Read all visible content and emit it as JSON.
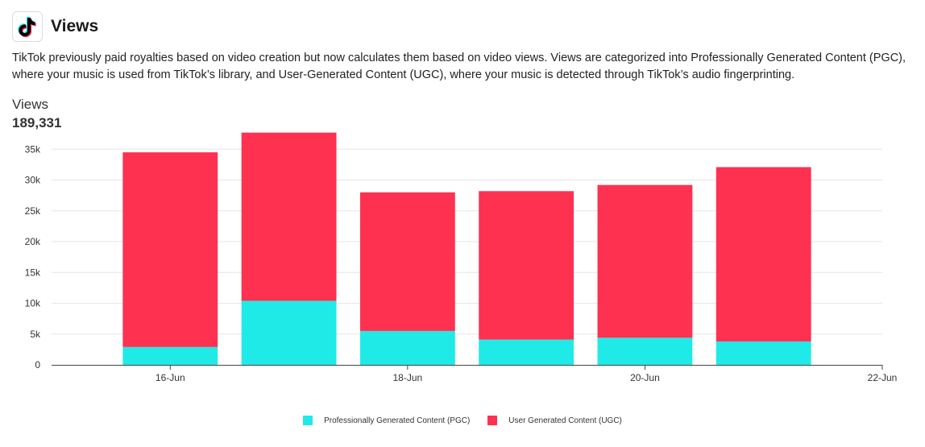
{
  "header": {
    "title": "Views",
    "logo_icon": "tiktok-logo-icon"
  },
  "description": "TikTok previously paid royalties based on video creation but now calculates them based on video views. Views are categorized into Professionally Generated Content (PGC), where your music is used from TikTok’s library, and User-Generated Content (UGC), where your music is detected through TikTok’s audio fingerprinting.",
  "metric": {
    "label": "Views",
    "value": "189,331"
  },
  "colors": {
    "pgc": "#20eae8",
    "ugc": "#fe3150",
    "grid": "#e6e6e6",
    "axis": "#444444"
  },
  "chart_data": {
    "type": "bar",
    "stacked": true,
    "x": [
      "2024-06-16",
      "2024-06-17",
      "2024-06-18",
      "2024-06-19",
      "2024-06-20",
      "2024-06-21"
    ],
    "x_tick_labels": [
      {
        "date": "2024-06-16",
        "label": "16-Jun"
      },
      {
        "date": "2024-06-18",
        "label": "18-Jun"
      },
      {
        "date": "2024-06-20",
        "label": "20-Jun"
      },
      {
        "date": "2024-06-22",
        "label": "22-Jun"
      }
    ],
    "xlim": [
      "2024-06-15T12:00",
      "2024-06-22T12:00"
    ],
    "series": [
      {
        "name": "Professionally Generated Content (PGC)",
        "values": [
          2900,
          10400,
          5500,
          4100,
          4400,
          3800
        ]
      },
      {
        "name": "User Generated Content (UGC)",
        "values": [
          31600,
          27300,
          22500,
          24100,
          24800,
          28300
        ]
      }
    ],
    "ylim": [
      0,
      37000
    ],
    "y_ticks": [
      0,
      5000,
      10000,
      15000,
      20000,
      25000,
      30000,
      35000
    ],
    "y_tick_labels": [
      "0",
      "5k",
      "10k",
      "15k",
      "20k",
      "25k",
      "30k",
      "35k"
    ],
    "grid": true,
    "legend": "bottom"
  }
}
